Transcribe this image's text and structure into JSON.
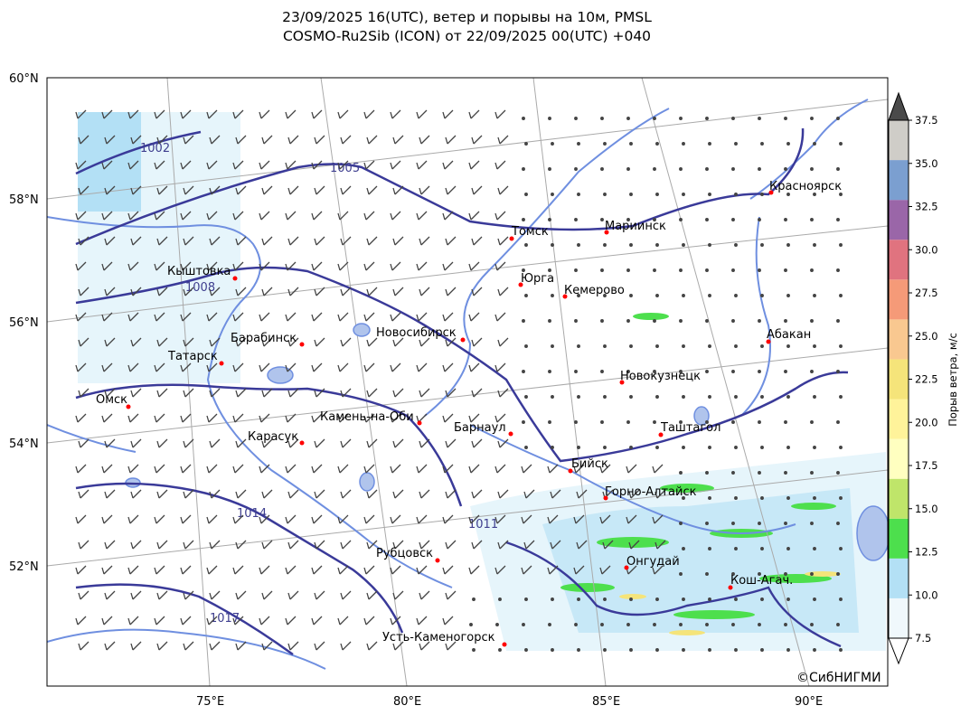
{
  "title": {
    "line1": "23/09/2025 16(UTC), ветер и порывы на 10м, PMSL",
    "line2": "COSMO-Ru2Sib (ICON) от 22/09/2025 00(UTC) +040"
  },
  "map": {
    "lat_labels": [
      "60°N",
      "58°N",
      "56°N",
      "54°N",
      "52°N"
    ],
    "lon_labels": [
      "75°E",
      "80°E",
      "85°E",
      "90°E"
    ],
    "copyright": "©СибНИГМИ",
    "cities": [
      {
        "name": "Томск"
      },
      {
        "name": "Мариинск"
      },
      {
        "name": "Красноярск"
      },
      {
        "name": "Юрга"
      },
      {
        "name": "Кемерово"
      },
      {
        "name": "Кыштовка"
      },
      {
        "name": "Барабинск"
      },
      {
        "name": "Новосибирск"
      },
      {
        "name": "Абакан"
      },
      {
        "name": "Татарск"
      },
      {
        "name": "Новокузнецк"
      },
      {
        "name": "Омск"
      },
      {
        "name": "Камень-на-Оби"
      },
      {
        "name": "Барнаул"
      },
      {
        "name": "Таштагол"
      },
      {
        "name": "Карасук"
      },
      {
        "name": "Бийск"
      },
      {
        "name": "Горно-Алтайск"
      },
      {
        "name": "Рубцовск"
      },
      {
        "name": "Онгудай"
      },
      {
        "name": "Кош-Агач."
      },
      {
        "name": "Усть-Каменогорск"
      }
    ],
    "isobar_labels": [
      "1002",
      "1005",
      "1008",
      "1011",
      "1014",
      "1017"
    ],
    "colors": {
      "isobar": "#3a3a99",
      "river": "#6f8fe0",
      "city_marker": "#ff0000",
      "gust_light": "#e6f5fb",
      "gust_blue": "#b3e0f5"
    }
  },
  "colorbar": {
    "label": "Порыв ветра, м/с",
    "ticks": [
      "7.5",
      "10.0",
      "12.5",
      "15.0",
      "17.5",
      "20.0",
      "22.5",
      "25.0",
      "27.5",
      "30.0",
      "32.5",
      "35.0",
      "37.5"
    ],
    "colors": [
      "#f0f8fc",
      "#b3e0f5",
      "#4ddf4d",
      "#bfe56a",
      "#ffffc0",
      "#fff39a",
      "#f5e47a",
      "#f9c890",
      "#f59a78",
      "#e0737f",
      "#9a66a8",
      "#7b9fd0",
      "#cfcdc8"
    ],
    "over_color": "#4a4a4a",
    "under_color": "#ffffff"
  }
}
